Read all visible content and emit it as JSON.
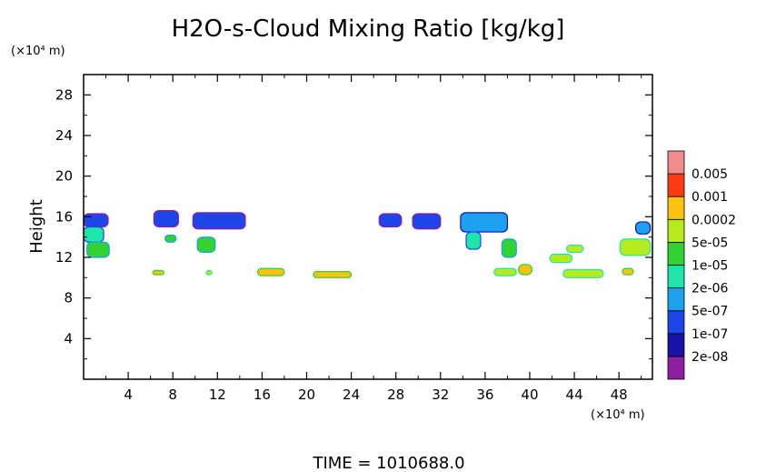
{
  "chart_data": {
    "type": "heatmap",
    "title": "H2O-s-Cloud Mixing Ratio [kg/kg]",
    "ylabel": "Height",
    "y_unit": "(×10⁴ m)",
    "x_unit": "(×10⁴ m)",
    "footer": "TIME  =  1010688.0",
    "xlim": [
      0,
      51
    ],
    "ylim": [
      0,
      30
    ],
    "x_ticks": [
      4,
      8,
      12,
      16,
      20,
      24,
      28,
      32,
      36,
      40,
      44,
      48
    ],
    "y_ticks": [
      4,
      8,
      12,
      16,
      20,
      24,
      28
    ],
    "grid": false,
    "colorbar": {
      "levels": [
        "2e-08",
        "1e-07",
        "5e-07",
        "2e-06",
        "1e-05",
        "5e-05",
        "0.0002",
        "0.001",
        "0.005"
      ],
      "colors": [
        "#8B1FA0",
        "#1A12A8",
        "#1E46E6",
        "#1EA0F0",
        "#1EE6AA",
        "#32D232",
        "#B4EB1E",
        "#FAC314",
        "#FA3C14",
        "#F08C8C"
      ]
    },
    "cloud_patches": [
      {
        "x": [
          0,
          2.2
        ],
        "y": [
          15.0,
          16.3
        ],
        "level": 2
      },
      {
        "x": [
          0,
          1.8
        ],
        "y": [
          13.5,
          15.0
        ],
        "level": 4
      },
      {
        "x": [
          0.3,
          2.3
        ],
        "y": [
          12.0,
          13.5
        ],
        "level": 5
      },
      {
        "x": [
          6.3,
          8.5
        ],
        "y": [
          15.0,
          16.6
        ],
        "level": 2
      },
      {
        "x": [
          7.3,
          8.3
        ],
        "y": [
          13.5,
          14.2
        ],
        "level": 5
      },
      {
        "x": [
          9.8,
          14.5
        ],
        "y": [
          14.8,
          16.4
        ],
        "level": 2
      },
      {
        "x": [
          10.2,
          11.8
        ],
        "y": [
          12.5,
          14.0
        ],
        "level": 5
      },
      {
        "x": [
          26.5,
          28.5
        ],
        "y": [
          15.0,
          16.3
        ],
        "level": 2
      },
      {
        "x": [
          29.5,
          32.0
        ],
        "y": [
          14.8,
          16.3
        ],
        "level": 2
      },
      {
        "x": [
          33.8,
          38.0
        ],
        "y": [
          14.5,
          16.4
        ],
        "level": 3
      },
      {
        "x": [
          34.3,
          35.6
        ],
        "y": [
          12.8,
          14.5
        ],
        "level": 4
      },
      {
        "x": [
          37.5,
          38.8
        ],
        "y": [
          12.0,
          13.8
        ],
        "level": 5
      },
      {
        "x": [
          39.0,
          40.2
        ],
        "y": [
          10.3,
          11.3
        ],
        "level": 7
      },
      {
        "x": [
          36.8,
          38.8
        ],
        "y": [
          10.2,
          10.9
        ],
        "level": 6
      },
      {
        "x": [
          43.3,
          44.8
        ],
        "y": [
          12.5,
          13.2
        ],
        "level": 6
      },
      {
        "x": [
          41.8,
          43.8
        ],
        "y": [
          11.5,
          12.3
        ],
        "level": 6
      },
      {
        "x": [
          43.0,
          46.6
        ],
        "y": [
          10.0,
          10.8
        ],
        "level": 6
      },
      {
        "x": [
          48.1,
          50.8
        ],
        "y": [
          12.2,
          13.8
        ],
        "level": 6
      },
      {
        "x": [
          49.5,
          50.8
        ],
        "y": [
          14.3,
          15.5
        ],
        "level": 3
      },
      {
        "x": [
          48.3,
          49.3
        ],
        "y": [
          10.3,
          10.9
        ],
        "level": 7
      },
      {
        "x": [
          15.6,
          18.0
        ],
        "y": [
          10.2,
          10.9
        ],
        "level": 7
      },
      {
        "x": [
          20.6,
          24.0
        ],
        "y": [
          10.0,
          10.6
        ],
        "level": 7
      },
      {
        "x": [
          6.2,
          7.2
        ],
        "y": [
          10.3,
          10.7
        ],
        "level": 7
      },
      {
        "x": [
          11.0,
          11.5
        ],
        "y": [
          10.3,
          10.7
        ],
        "level": 6
      }
    ]
  }
}
